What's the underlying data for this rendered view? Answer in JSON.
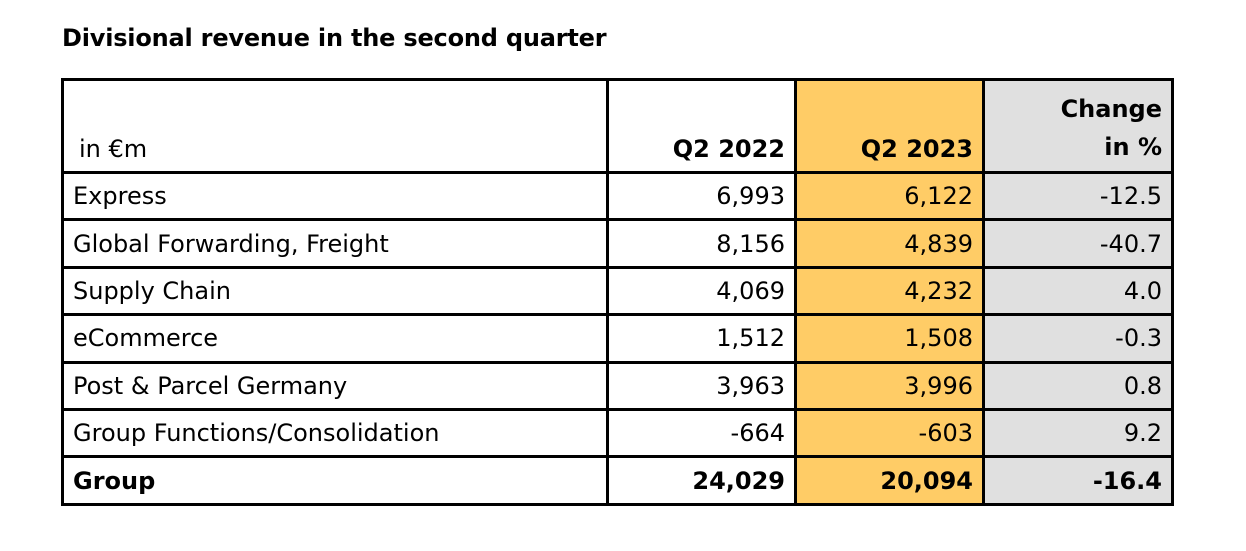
{
  "title": "Divisional revenue in the second quarter",
  "colors": {
    "highlight_column": "#ffcc66",
    "change_column": "#e0e0e0",
    "border": "#000000"
  },
  "table": {
    "header": {
      "unit": "in €m",
      "col1": "Q2 2022",
      "col2": "Q2 2023",
      "col3_line1": "Change",
      "col3_line2": "in %"
    },
    "rows": [
      {
        "label": "Express",
        "q2_2022": "6,993",
        "q2_2023": "6,122",
        "change": "-12.5"
      },
      {
        "label": "Global Forwarding, Freight",
        "q2_2022": "8,156",
        "q2_2023": "4,839",
        "change": "-40.7"
      },
      {
        "label": "Supply Chain",
        "q2_2022": "4,069",
        "q2_2023": "4,232",
        "change": "4.0"
      },
      {
        "label": "eCommerce",
        "q2_2022": "1,512",
        "q2_2023": "1,508",
        "change": "-0.3"
      },
      {
        "label": "Post & Parcel Germany",
        "q2_2022": "3,963",
        "q2_2023": "3,996",
        "change": "0.8"
      },
      {
        "label": "Group Functions/Consolidation",
        "q2_2022": "-664",
        "q2_2023": "-603",
        "change": "9.2"
      }
    ],
    "total": {
      "label": "Group",
      "q2_2022": "24,029",
      "q2_2023": "20,094",
      "change": "-16.4"
    }
  }
}
